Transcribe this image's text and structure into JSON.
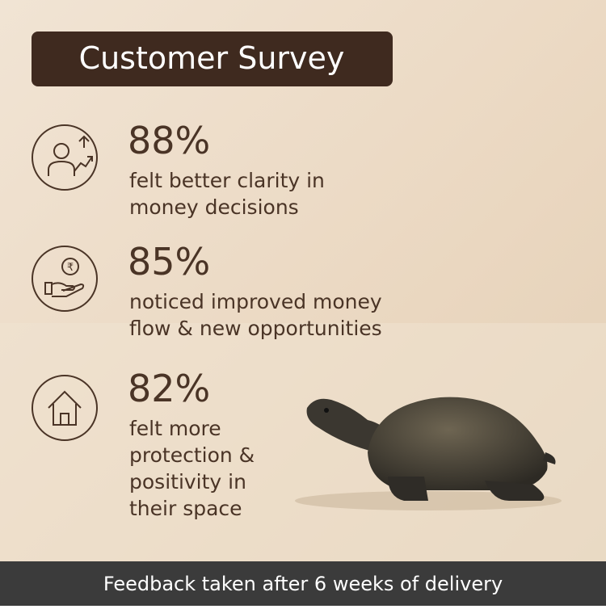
{
  "header": {
    "title": "Customer Survey"
  },
  "stats": [
    {
      "value": "88%",
      "lines": [
        "felt better clarity in",
        "money decisions"
      ]
    },
    {
      "value": "85%",
      "lines": [
        "noticed improved money",
        "flow & new opportunities"
      ]
    },
    {
      "value": "82%",
      "lines": [
        "felt more",
        "protection &",
        "positivity in",
        "their space"
      ]
    }
  ],
  "footer": {
    "text": "Feedback taken after 6 weeks of delivery"
  }
}
